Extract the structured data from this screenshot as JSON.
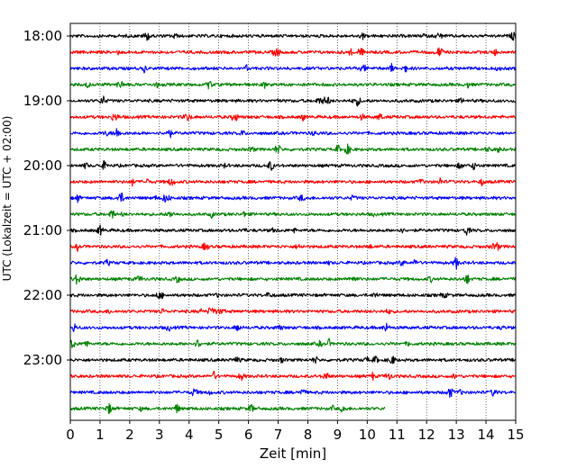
{
  "chart_data": {
    "type": "line",
    "title": "",
    "xlabel": "Zeit  [min]",
    "ylabel": "UTC (Lokalzeit = UTC + 02:00)",
    "xlim": [
      0,
      15
    ],
    "x_ticks": [
      "0",
      "1",
      "2",
      "3",
      "4",
      "5",
      "6",
      "7",
      "8",
      "9",
      "10",
      "11",
      "12",
      "13",
      "14",
      "15"
    ],
    "y_ticks": [
      "18:00",
      "19:00",
      "20:00",
      "21:00",
      "22:00",
      "23:00"
    ],
    "vertical_grid": "dotted",
    "trace_minutes": 15,
    "color_cycle": [
      "#000000",
      "#ff0000",
      "#0000ff",
      "#008000"
    ],
    "traces": [
      {
        "start": "18:00",
        "color": "#000000",
        "duration_min": 15
      },
      {
        "start": "18:15",
        "color": "#ff0000",
        "duration_min": 15
      },
      {
        "start": "18:30",
        "color": "#0000ff",
        "duration_min": 15
      },
      {
        "start": "18:45",
        "color": "#008000",
        "duration_min": 15
      },
      {
        "start": "19:00",
        "color": "#000000",
        "duration_min": 15
      },
      {
        "start": "19:15",
        "color": "#ff0000",
        "duration_min": 15
      },
      {
        "start": "19:30",
        "color": "#0000ff",
        "duration_min": 15
      },
      {
        "start": "19:45",
        "color": "#008000",
        "duration_min": 15
      },
      {
        "start": "20:00",
        "color": "#000000",
        "duration_min": 15
      },
      {
        "start": "20:15",
        "color": "#ff0000",
        "duration_min": 15
      },
      {
        "start": "20:30",
        "color": "#0000ff",
        "duration_min": 15
      },
      {
        "start": "20:45",
        "color": "#008000",
        "duration_min": 15
      },
      {
        "start": "21:00",
        "color": "#000000",
        "duration_min": 15
      },
      {
        "start": "21:15",
        "color": "#ff0000",
        "duration_min": 15
      },
      {
        "start": "21:30",
        "color": "#0000ff",
        "duration_min": 15
      },
      {
        "start": "21:45",
        "color": "#008000",
        "duration_min": 15
      },
      {
        "start": "22:00",
        "color": "#000000",
        "duration_min": 15
      },
      {
        "start": "22:15",
        "color": "#ff0000",
        "duration_min": 15
      },
      {
        "start": "22:30",
        "color": "#0000ff",
        "duration_min": 15
      },
      {
        "start": "22:45",
        "color": "#008000",
        "duration_min": 15
      },
      {
        "start": "23:00",
        "color": "#000000",
        "duration_min": 15
      },
      {
        "start": "23:15",
        "color": "#ff0000",
        "duration_min": 15
      },
      {
        "start": "23:30",
        "color": "#0000ff",
        "duration_min": 15
      },
      {
        "start": "23:45",
        "color": "#008000",
        "duration_min": 10.6
      }
    ]
  }
}
